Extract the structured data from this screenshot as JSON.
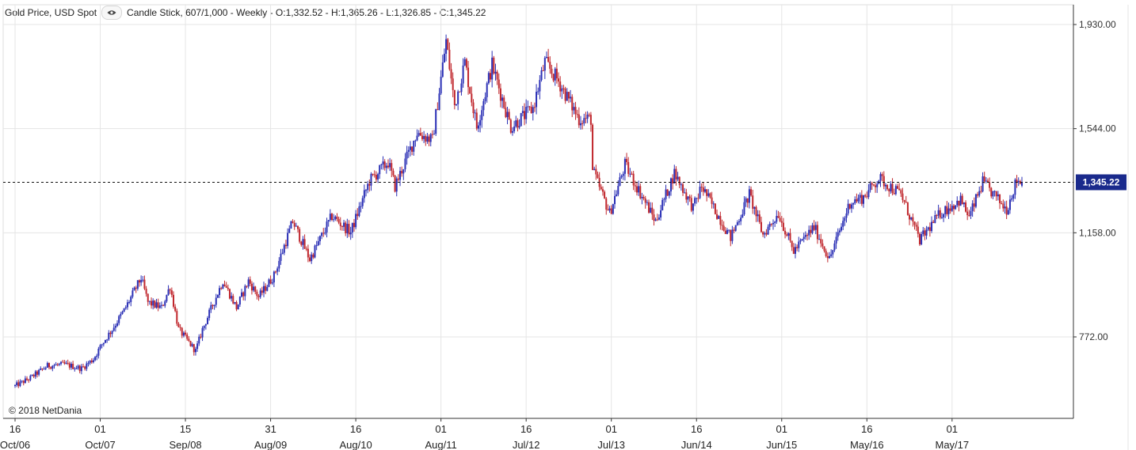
{
  "header": {
    "instrument": "Gold Price, USD Spot",
    "visibility_icon": "eye-icon",
    "details": "Candle Stick, 607/1,000 - Weekly - O:1,332.52 - H:1,365.26 - L:1,326.85 - C:1,345.22"
  },
  "copyright": "© 2018 NetDania",
  "colors": {
    "up": "#2a2fb5",
    "down": "#c0272d",
    "grid": "#e5e5e5",
    "axis": "#333333",
    "current_badge": "#1a2a8c"
  },
  "chart_data": {
    "type": "candlestick",
    "title": "Gold Price, USD Spot",
    "interval": "Weekly",
    "last_candle": {
      "open": 1332.52,
      "high": 1365.26,
      "low": 1326.85,
      "close": 1345.22
    },
    "current_price": 1345.22,
    "current_price_label": "1,345.22",
    "y_axis": {
      "position": "right",
      "ticks": [
        1930.0,
        1544.0,
        1158.0,
        772.0
      ],
      "tick_labels": [
        "1,930.00",
        "1,544.00",
        "1,158.00",
        "772.00"
      ],
      "range": [
        560,
        1930
      ]
    },
    "x_axis": {
      "tick_day_labels": [
        "16",
        "01",
        "15",
        "31",
        "16",
        "01",
        "16",
        "01",
        "16",
        "01",
        "16",
        "01"
      ],
      "tick_month_labels": [
        "Oct/06",
        "Oct/07",
        "Sep/08",
        "Aug/09",
        "Aug/10",
        "Aug/11",
        "Jul/12",
        "Jul/13",
        "Jun/14",
        "Jun/15",
        "May/16",
        "May/17"
      ],
      "tick_dates": [
        "2006-10-16",
        "2007-10-01",
        "2008-09-15",
        "2009-08-31",
        "2010-08-16",
        "2011-08-01",
        "2012-07-16",
        "2013-07-01",
        "2014-06-16",
        "2015-06-01",
        "2016-05-16",
        "2017-05-01"
      ],
      "range": [
        "2006-10-16",
        "2018-02-12"
      ]
    },
    "close_path": [
      [
        "2006-10-16",
        590
      ],
      [
        "2006-12-18",
        620
      ],
      [
        "2007-02-26",
        665
      ],
      [
        "2007-05-07",
        670
      ],
      [
        "2007-07-16",
        655
      ],
      [
        "2007-09-03",
        690
      ],
      [
        "2007-10-08",
        745
      ],
      [
        "2007-11-19",
        800
      ],
      [
        "2008-01-07",
        870
      ],
      [
        "2008-03-17",
        990
      ],
      [
        "2008-04-14",
        900
      ],
      [
        "2008-06-09",
        880
      ],
      [
        "2008-07-14",
        960
      ],
      [
        "2008-08-18",
        800
      ],
      [
        "2008-10-27",
        720
      ],
      [
        "2008-11-24",
        800
      ],
      [
        "2009-02-16",
        980
      ],
      [
        "2009-04-13",
        880
      ],
      [
        "2009-06-01",
        980
      ],
      [
        "2009-07-13",
        920
      ],
      [
        "2009-09-14",
        1000
      ],
      [
        "2009-11-30",
        1200
      ],
      [
        "2010-02-08",
        1060
      ],
      [
        "2010-05-10",
        1220
      ],
      [
        "2010-07-26",
        1160
      ],
      [
        "2010-10-11",
        1350
      ],
      [
        "2010-12-27",
        1420
      ],
      [
        "2011-01-24",
        1330
      ],
      [
        "2011-04-25",
        1530
      ],
      [
        "2011-06-27",
        1500
      ],
      [
        "2011-08-22",
        1870
      ],
      [
        "2011-09-26",
        1630
      ],
      [
        "2011-11-07",
        1790
      ],
      [
        "2011-12-26",
        1550
      ],
      [
        "2012-02-27",
        1780
      ],
      [
        "2012-05-14",
        1550
      ],
      [
        "2012-08-13",
        1620
      ],
      [
        "2012-10-01",
        1790
      ],
      [
        "2012-11-26",
        1720
      ],
      [
        "2013-02-18",
        1580
      ],
      [
        "2013-04-08",
        1580
      ],
      [
        "2013-04-15",
        1390
      ],
      [
        "2013-06-24",
        1230
      ],
      [
        "2013-08-26",
        1410
      ],
      [
        "2013-12-30",
        1200
      ],
      [
        "2014-03-17",
        1380
      ],
      [
        "2014-06-02",
        1250
      ],
      [
        "2014-07-07",
        1330
      ],
      [
        "2014-11-03",
        1140
      ],
      [
        "2015-01-19",
        1300
      ],
      [
        "2015-03-16",
        1150
      ],
      [
        "2015-05-18",
        1230
      ],
      [
        "2015-07-20",
        1090
      ],
      [
        "2015-10-12",
        1180
      ],
      [
        "2015-12-14",
        1060
      ],
      [
        "2016-03-07",
        1270
      ],
      [
        "2016-05-02",
        1290
      ],
      [
        "2016-07-04",
        1360
      ],
      [
        "2016-10-03",
        1300
      ],
      [
        "2016-12-19",
        1130
      ],
      [
        "2017-03-13",
        1230
      ],
      [
        "2017-06-05",
        1280
      ],
      [
        "2017-07-10",
        1215
      ],
      [
        "2017-09-04",
        1345
      ],
      [
        "2017-12-11",
        1245
      ],
      [
        "2018-01-22",
        1355
      ],
      [
        "2018-02-12",
        1345.22
      ]
    ]
  }
}
